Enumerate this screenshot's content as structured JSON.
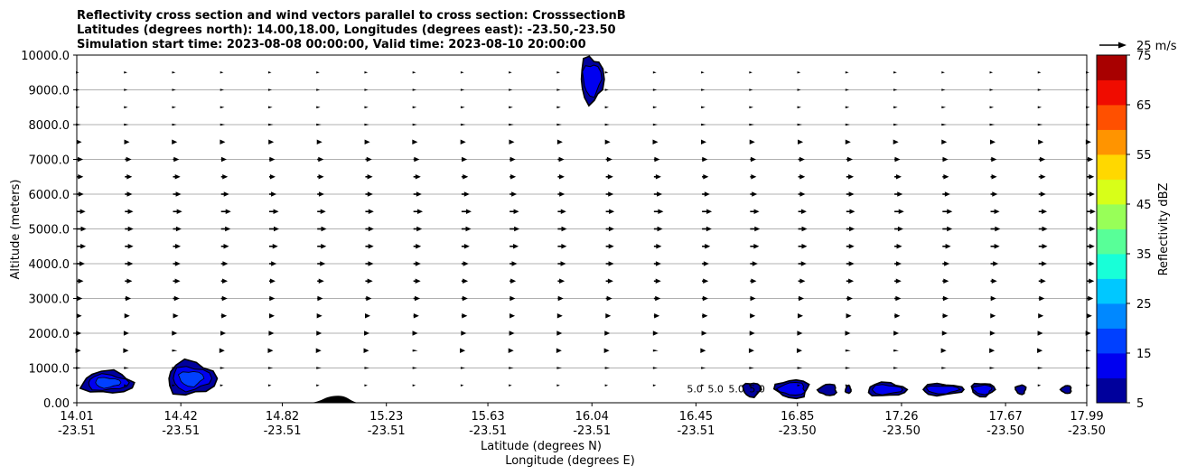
{
  "chart_data": {
    "type": "contour+quiver cross-section",
    "title": [
      "Reflectivity cross section and wind vectors parallel to cross section: CrosssectionB",
      "Latitudes (degrees north): 14.00,18.00, Longitudes (degrees east): -23.50,-23.50",
      "Simulation start time: 2023-08-08 00:00:00, Valid time: 2023-08-10 20:00:00"
    ],
    "xlabel_lat": "Latitude (degrees N)",
    "xlabel_lon": "Longitude (degrees E)",
    "ylabel": "Altitude (meters)",
    "xlim": [
      14.01,
      17.99
    ],
    "ylim": [
      0,
      10000
    ],
    "grid": "horizontal",
    "x_ticks": [
      {
        "lat": "14.01",
        "lon": "-23.51",
        "v": 14.01
      },
      {
        "lat": "14.42",
        "lon": "-23.51",
        "v": 14.42
      },
      {
        "lat": "14.82",
        "lon": "-23.51",
        "v": 14.82
      },
      {
        "lat": "15.23",
        "lon": "-23.51",
        "v": 15.23
      },
      {
        "lat": "15.63",
        "lon": "-23.51",
        "v": 15.63
      },
      {
        "lat": "16.04",
        "lon": "-23.51",
        "v": 16.04
      },
      {
        "lat": "16.45",
        "lon": "-23.51",
        "v": 16.45
      },
      {
        "lat": "16.85",
        "lon": "-23.50",
        "v": 16.85
      },
      {
        "lat": "17.26",
        "lon": "-23.50",
        "v": 17.26
      },
      {
        "lat": "17.67",
        "lon": "-23.50",
        "v": 17.67
      },
      {
        "lat": "17.99",
        "lon": "-23.50",
        "v": 17.99
      }
    ],
    "y_ticks": [
      {
        "label": "0.00",
        "v": 0
      },
      {
        "label": "1000.0",
        "v": 1000
      },
      {
        "label": "2000.0",
        "v": 2000
      },
      {
        "label": "3000.0",
        "v": 3000
      },
      {
        "label": "4000.0",
        "v": 4000
      },
      {
        "label": "5000.0",
        "v": 5000
      },
      {
        "label": "6000.0",
        "v": 6000
      },
      {
        "label": "7000.0",
        "v": 7000
      },
      {
        "label": "8000.0",
        "v": 8000
      },
      {
        "label": "9000.0",
        "v": 9000
      },
      {
        "label": "10000.0",
        "v": 10000
      }
    ],
    "colorbar": {
      "label": "Reflectivity dBZ",
      "vmin": 5,
      "vmax": 75,
      "step": 5,
      "tick_labels": [
        "5",
        "15",
        "25",
        "35",
        "45",
        "55",
        "65",
        "75"
      ],
      "colors": [
        "#00009c",
        "#0000f0",
        "#0040ff",
        "#0088ff",
        "#00c8ff",
        "#18ffd8",
        "#58ff98",
        "#98ff58",
        "#d8ff18",
        "#ffd800",
        "#ff9400",
        "#ff5000",
        "#f00c00",
        "#a80000"
      ]
    },
    "quiver_key": {
      "label": "25 m/s",
      "speed": 25
    },
    "wind_altitudes": [
      500,
      1000,
      1500,
      2000,
      2500,
      3000,
      3500,
      4000,
      4500,
      5000,
      5500,
      6000,
      6500,
      7000,
      7500,
      8000,
      8500,
      9000,
      9500
    ],
    "wind_speeds": [
      3,
      4,
      5,
      6,
      7,
      8,
      9,
      10,
      11,
      12,
      12,
      10,
      9,
      8,
      6,
      4,
      3,
      2.5,
      2
    ],
    "terrain": {
      "lat_start": 14.92,
      "lat_peak": 15.04,
      "lat_end": 15.13,
      "peak_alt": 200
    },
    "contour_labels": [
      "5.0",
      "5.0",
      "5.0",
      "5.0"
    ],
    "echoes": [
      {
        "lat": 14.13,
        "alt": 580,
        "half_width_deg": 0.1,
        "half_height_m": 320
      },
      {
        "lat": 14.46,
        "alt": 700,
        "half_width_deg": 0.095,
        "half_height_m": 480
      },
      {
        "lat": 16.04,
        "alt": 9300,
        "half_width_deg": 0.045,
        "half_height_m": 650
      },
      {
        "lat": 16.67,
        "alt": 380,
        "half_width_deg": 0.035,
        "half_height_m": 200
      },
      {
        "lat": 16.83,
        "alt": 400,
        "half_width_deg": 0.065,
        "half_height_m": 260
      },
      {
        "lat": 16.97,
        "alt": 370,
        "half_width_deg": 0.035,
        "half_height_m": 160
      },
      {
        "lat": 17.05,
        "alt": 380,
        "half_width_deg": 0.01,
        "half_height_m": 110
      },
      {
        "lat": 17.2,
        "alt": 380,
        "half_width_deg": 0.075,
        "half_height_m": 190
      },
      {
        "lat": 17.42,
        "alt": 380,
        "half_width_deg": 0.08,
        "half_height_m": 160
      },
      {
        "lat": 17.58,
        "alt": 380,
        "half_width_deg": 0.045,
        "half_height_m": 190
      },
      {
        "lat": 17.73,
        "alt": 380,
        "half_width_deg": 0.02,
        "half_height_m": 130
      },
      {
        "lat": 17.91,
        "alt": 380,
        "half_width_deg": 0.02,
        "half_height_m": 110
      }
    ]
  }
}
